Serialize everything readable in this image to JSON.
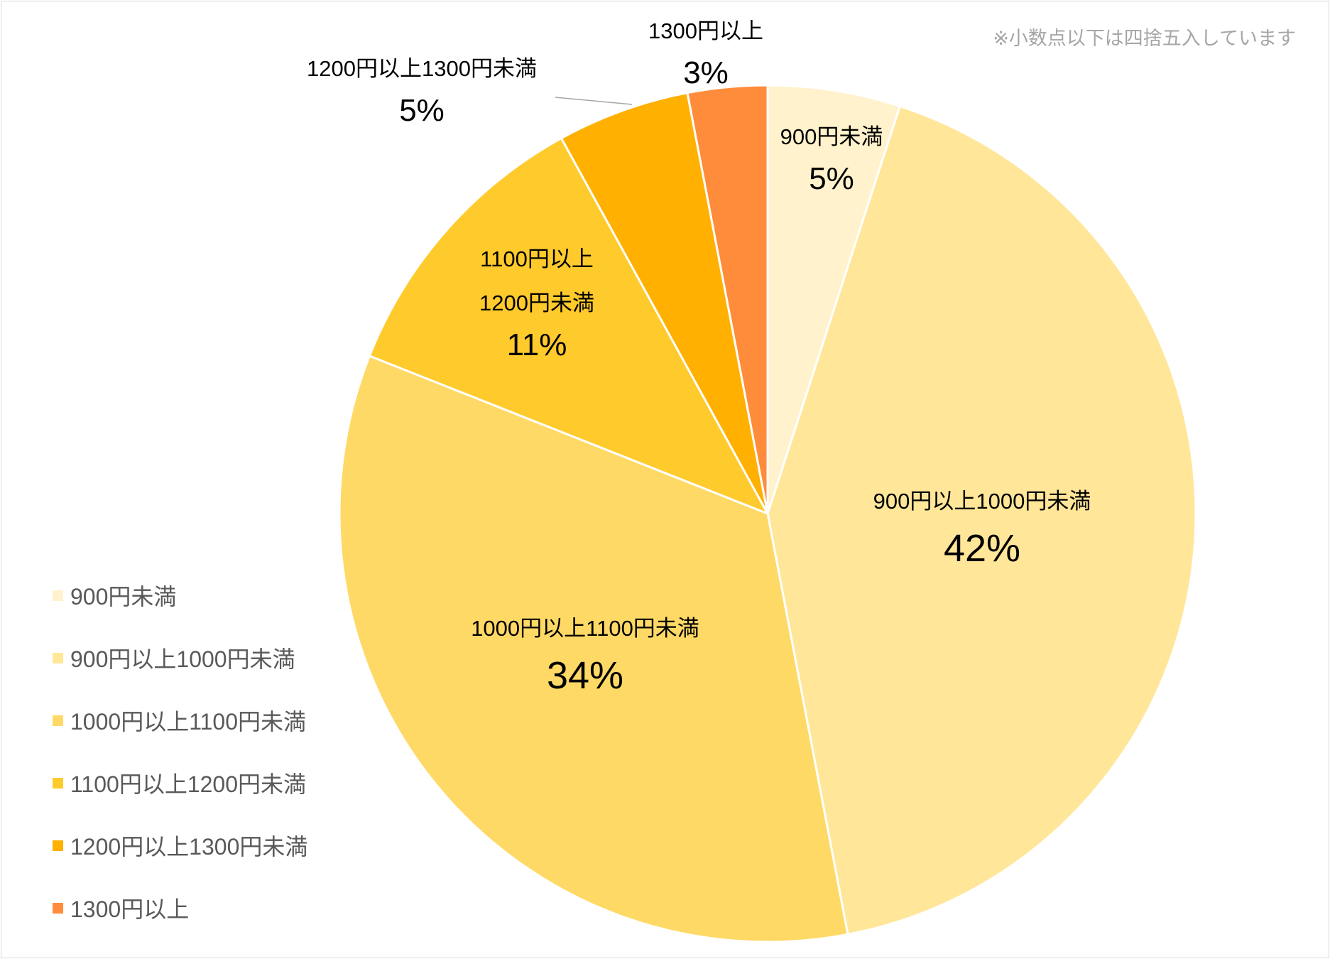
{
  "chart_data": {
    "type": "pie",
    "note": "※小数点以下は四捨五入しています",
    "categories": [
      "900円未満",
      "900円以上1000円未満",
      "1000円以上1100円未満",
      "1100円以上1200円未満",
      "1200円以上1300円未満",
      "1300円以上"
    ],
    "values": [
      5,
      42,
      34,
      11,
      5,
      3
    ],
    "value_labels": [
      "5%",
      "42%",
      "34%",
      "11%",
      "5%",
      "3%"
    ],
    "colors": [
      "#FFF2CC",
      "#FFE699",
      "#FFD966",
      "#FFCA2C",
      "#FFB000",
      "#FF8C3A"
    ],
    "legend": "left"
  }
}
